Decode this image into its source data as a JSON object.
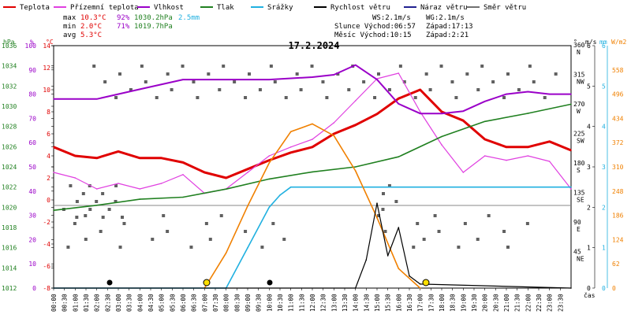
{
  "legend": [
    {
      "label": "Teplota",
      "color": "#e00000"
    },
    {
      "label": "Přízemní teplota",
      "color": "#e040e0"
    },
    {
      "label": "Vlhkost",
      "color": "#9a00c8"
    },
    {
      "label": "Tlak",
      "color": "#208020"
    },
    {
      "label": "Srážky",
      "color": "#20b0e0"
    },
    {
      "label": "Rychlost větru",
      "color": "#000000"
    },
    {
      "label": "Náraz větru",
      "color": "#202090"
    },
    {
      "label": "Směr větru",
      "color": "#707070"
    }
  ],
  "stats": {
    "max_label": "max",
    "max_temp": "10.3°C",
    "max_hum": "92%",
    "max_press": "1030.2hPa",
    "max_rain": "2.5mm",
    "min_label": "min",
    "min_temp": "2.0°C",
    "min_hum": "71%",
    "min_press": "1019.7hPa",
    "avg_label": "avg",
    "avg_temp": "5.3°C"
  },
  "astro": {
    "ws": "WS:2.1m/s",
    "wg": "WG:2.1m/s",
    "sun": "Slunce Východ:06:57",
    "sun_set": "Západ:17:13",
    "moon": "Měsíc  Východ:10:15",
    "moon_set": "Západ:2:21"
  },
  "chart_data": {
    "type": "line",
    "title": "17.2.2024",
    "xlabel": "čas",
    "x_ticks": [
      "00:00",
      "00:30",
      "01:00",
      "01:30",
      "02:00",
      "02:30",
      "03:00",
      "03:30",
      "04:00",
      "04:30",
      "05:00",
      "05:30",
      "06:00",
      "06:30",
      "07:00",
      "07:30",
      "08:00",
      "08:30",
      "09:00",
      "09:30",
      "10:00",
      "10:30",
      "11:00",
      "11:30",
      "12:00",
      "12:30",
      "13:00",
      "13:30",
      "14:00",
      "14:30",
      "15:00",
      "15:30",
      "16:00",
      "16:30",
      "17:00",
      "17:30",
      "18:00",
      "18:30",
      "19:00",
      "19:30",
      "20:00",
      "20:30",
      "21:00",
      "21:30",
      "22:00",
      "22:30",
      "23:00",
      "23:30"
    ],
    "axes": {
      "hpa": {
        "label": "hPa",
        "ticks": [
          "1036",
          "1034",
          "1032",
          "1030",
          "1028",
          "1026",
          "1024",
          "1022",
          "1020",
          "1018",
          "1016",
          "1014",
          "1012"
        ],
        "range": [
          1012,
          1036
        ]
      },
      "pct": {
        "label": "%",
        "ticks": [
          "100",
          "90",
          "80",
          "70",
          "60",
          "50",
          "40",
          "30",
          "20",
          "10",
          "0"
        ],
        "range": [
          0,
          100
        ]
      },
      "temp": {
        "label": "°C",
        "ticks": [
          "14",
          "12",
          "10",
          "8",
          "6",
          "4",
          "2",
          "0",
          "-2",
          "-4",
          "-6",
          "-8"
        ],
        "range": [
          -8,
          14
        ]
      },
      "dir": {
        "label": "°",
        "ticks": [
          "360 N",
          "315 NW",
          "270 W",
          "225 SW",
          "180 S",
          "135 SE",
          "90 E",
          "45 NE"
        ]
      },
      "ms": {
        "label": "m/s",
        "ticks": [
          "6",
          "5",
          "4",
          "3",
          "2",
          "1",
          "0"
        ],
        "range": [
          0,
          6
        ]
      },
      "mm": {
        "label": "mm",
        "ticks": [
          "6",
          "5",
          "4",
          "3",
          "2",
          "1",
          "0"
        ],
        "range": [
          0,
          6
        ]
      },
      "wm2": {
        "label": "W/m2",
        "ticks": [
          "558",
          "496",
          "434",
          "372",
          "310",
          "248",
          "186",
          "124",
          "62",
          "0"
        ],
        "range": [
          0,
          620
        ]
      }
    },
    "series": [
      {
        "name": "Teplota",
        "axis": "temp",
        "x": [
          0,
          1,
          2,
          3,
          4,
          5,
          6,
          7,
          8,
          9,
          10,
          11,
          12,
          13,
          14,
          15,
          16,
          17,
          18,
          19,
          20,
          21,
          22,
          23,
          24
        ],
        "y": [
          4.8,
          4.0,
          3.8,
          4.4,
          3.8,
          3.8,
          3.4,
          2.5,
          2.0,
          2.8,
          3.6,
          4.3,
          4.8,
          6.0,
          6.8,
          7.8,
          9.2,
          10.0,
          8.0,
          7.2,
          5.5,
          4.8,
          4.8,
          5.3,
          4.5
        ]
      },
      {
        "name": "Přízemní teplota",
        "axis": "temp",
        "x": [
          0,
          1,
          2,
          3,
          4,
          5,
          6,
          7,
          8,
          9,
          10,
          11,
          12,
          13,
          14,
          15,
          16,
          17,
          18,
          19,
          20,
          21,
          22,
          23,
          24
        ],
        "y": [
          2.5,
          2.0,
          1.0,
          1.5,
          1.0,
          1.5,
          2.3,
          0.6,
          1.0,
          2.5,
          4.0,
          4.8,
          5.5,
          7.0,
          9.0,
          11.0,
          11.5,
          8.0,
          5.0,
          2.5,
          4.0,
          3.6,
          4.0,
          3.5,
          1.0
        ]
      },
      {
        "name": "Vlhkost",
        "axis": "pct",
        "x": [
          0,
          2,
          4,
          6,
          8,
          10,
          12,
          13,
          14,
          15,
          16,
          17,
          18,
          19,
          20,
          21,
          22,
          23,
          24
        ],
        "y": [
          78,
          78,
          82,
          86,
          86,
          86,
          87,
          88,
          92,
          86,
          76,
          72,
          72,
          73,
          77,
          80,
          81,
          80,
          80
        ]
      },
      {
        "name": "Tlak",
        "axis": "hpa",
        "x": [
          0,
          2,
          4,
          6,
          8,
          10,
          12,
          14,
          16,
          18,
          20,
          22,
          24
        ],
        "y": [
          1019.7,
          1020.2,
          1020.8,
          1021.0,
          1021.8,
          1022.8,
          1023.5,
          1024.0,
          1025.0,
          1027.0,
          1028.5,
          1029.3,
          1030.2
        ]
      },
      {
        "name": "Srážky",
        "axis": "mm",
        "x": [
          0,
          7,
          8,
          9,
          10,
          10.5,
          11,
          24
        ],
        "y": [
          0,
          0,
          0,
          1.0,
          2.0,
          2.3,
          2.5,
          2.5
        ]
      },
      {
        "name": "Sluneční záření",
        "axis": "wm2",
        "x": [
          7,
          8,
          9,
          10,
          11,
          12,
          13,
          14,
          15,
          16,
          17
        ],
        "y": [
          0,
          90,
          210,
          320,
          400,
          420,
          390,
          300,
          180,
          50,
          0
        ]
      },
      {
        "name": "Rychlost větru",
        "axis": "ms",
        "x": [
          0,
          14,
          14.5,
          15,
          15.5,
          16,
          16.5,
          17,
          24
        ],
        "y": [
          0,
          0,
          0.7,
          2.1,
          0.8,
          1.5,
          0.3,
          0.1,
          0
        ]
      }
    ]
  }
}
